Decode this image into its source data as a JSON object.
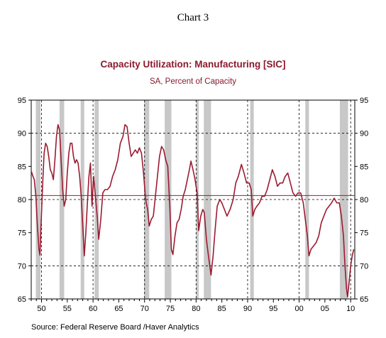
{
  "heading": "Chart 3",
  "source": "Source:  Federal Reserve Board /Haver Analytics",
  "chart_data": {
    "type": "line",
    "title": "Capacity Utilization: Manufacturing [SIC]",
    "subtitle": "SA, Percent of Capacity",
    "xlim": [
      1948,
      2010.8
    ],
    "ylim": [
      65,
      95
    ],
    "y_ticks": [
      95,
      90,
      85,
      80,
      75,
      70,
      65
    ],
    "x_ticks": [
      {
        "value": 1950,
        "label": "50"
      },
      {
        "value": 1955,
        "label": "55"
      },
      {
        "value": 1960,
        "label": "60"
      },
      {
        "value": 1965,
        "label": "65"
      },
      {
        "value": 1970,
        "label": "70"
      },
      {
        "value": 1975,
        "label": "75"
      },
      {
        "value": 1980,
        "label": "80"
      },
      {
        "value": 1985,
        "label": "85"
      },
      {
        "value": 1990,
        "label": "90"
      },
      {
        "value": 1995,
        "label": "95"
      },
      {
        "value": 2000,
        "label": "00"
      },
      {
        "value": 2005,
        "label": "05"
      },
      {
        "value": 2010,
        "label": "10"
      }
    ],
    "vertical_gridlines": [
      1950,
      1960,
      1970,
      1980,
      1990,
      2000,
      2010
    ],
    "horizontal_gridlines": [
      90,
      80,
      70
    ],
    "reference_line": 80.6,
    "recessions": [
      [
        1948.9,
        1949.8
      ],
      [
        1953.5,
        1954.4
      ],
      [
        1957.6,
        1958.3
      ],
      [
        1960.3,
        1961.1
      ],
      [
        1969.9,
        1970.9
      ],
      [
        1973.9,
        1975.2
      ],
      [
        1980.0,
        1980.5
      ],
      [
        1981.5,
        1982.9
      ],
      [
        1990.5,
        1991.2
      ],
      [
        2001.2,
        2001.9
      ],
      [
        2007.9,
        2009.5
      ]
    ],
    "colors": {
      "line": "#9b1b30",
      "recession": "#c8c8c8",
      "reference": "#9b1b30"
    },
    "grid": "dashed, black",
    "series": [
      {
        "values": [
          [
            1948.0,
            84.3
          ],
          [
            1948.3,
            83.6
          ],
          [
            1948.6,
            83.0
          ],
          [
            1948.9,
            80.5
          ],
          [
            1949.2,
            76.0
          ],
          [
            1949.5,
            72.5
          ],
          [
            1949.7,
            71.6
          ],
          [
            1949.9,
            76.0
          ],
          [
            1950.2,
            82.0
          ],
          [
            1950.5,
            87.0
          ],
          [
            1950.8,
            88.5
          ],
          [
            1951.1,
            88.0
          ],
          [
            1951.4,
            86.5
          ],
          [
            1951.7,
            84.5
          ],
          [
            1952.0,
            84.0
          ],
          [
            1952.3,
            83.0
          ],
          [
            1952.6,
            86.0
          ],
          [
            1952.9,
            89.5
          ],
          [
            1953.2,
            91.3
          ],
          [
            1953.5,
            90.5
          ],
          [
            1953.8,
            86.0
          ],
          [
            1954.1,
            81.5
          ],
          [
            1954.4,
            79.0
          ],
          [
            1954.7,
            80.0
          ],
          [
            1955.0,
            84.0
          ],
          [
            1955.3,
            87.0
          ],
          [
            1955.6,
            88.5
          ],
          [
            1955.9,
            88.5
          ],
          [
            1956.2,
            86.5
          ],
          [
            1956.5,
            85.5
          ],
          [
            1956.8,
            86.0
          ],
          [
            1957.1,
            85.5
          ],
          [
            1957.4,
            83.5
          ],
          [
            1957.7,
            80.5
          ],
          [
            1958.0,
            76.0
          ],
          [
            1958.3,
            71.5
          ],
          [
            1958.6,
            75.0
          ],
          [
            1958.9,
            79.5
          ],
          [
            1959.2,
            83.5
          ],
          [
            1959.5,
            85.5
          ],
          [
            1959.8,
            79.0
          ],
          [
            1960.1,
            83.5
          ],
          [
            1960.4,
            81.0
          ],
          [
            1960.8,
            77.5
          ],
          [
            1961.1,
            74.0
          ],
          [
            1961.5,
            77.0
          ],
          [
            1961.9,
            81.0
          ],
          [
            1962.3,
            81.5
          ],
          [
            1962.8,
            81.5
          ],
          [
            1963.3,
            82.0
          ],
          [
            1963.8,
            83.5
          ],
          [
            1964.3,
            84.5
          ],
          [
            1964.8,
            86.0
          ],
          [
            1965.3,
            88.5
          ],
          [
            1965.8,
            89.5
          ],
          [
            1966.2,
            91.3
          ],
          [
            1966.6,
            91.0
          ],
          [
            1967.0,
            88.5
          ],
          [
            1967.4,
            86.5
          ],
          [
            1967.8,
            87.0
          ],
          [
            1968.2,
            87.5
          ],
          [
            1968.6,
            87.0
          ],
          [
            1969.0,
            87.8
          ],
          [
            1969.4,
            87.0
          ],
          [
            1969.8,
            84.0
          ],
          [
            1970.2,
            80.0
          ],
          [
            1970.6,
            78.5
          ],
          [
            1970.9,
            76.0
          ],
          [
            1971.3,
            77.0
          ],
          [
            1971.7,
            77.5
          ],
          [
            1972.1,
            80.5
          ],
          [
            1972.5,
            83.5
          ],
          [
            1972.9,
            86.5
          ],
          [
            1973.3,
            88.0
          ],
          [
            1973.7,
            87.5
          ],
          [
            1974.1,
            86.0
          ],
          [
            1974.5,
            85.0
          ],
          [
            1974.9,
            79.0
          ],
          [
            1975.2,
            72.5
          ],
          [
            1975.5,
            71.7
          ],
          [
            1975.9,
            74.5
          ],
          [
            1976.3,
            76.5
          ],
          [
            1976.7,
            77.0
          ],
          [
            1977.1,
            78.5
          ],
          [
            1977.5,
            80.5
          ],
          [
            1977.9,
            81.5
          ],
          [
            1978.3,
            83.0
          ],
          [
            1978.7,
            84.5
          ],
          [
            1979.0,
            85.8
          ],
          [
            1979.4,
            84.5
          ],
          [
            1979.8,
            83.0
          ],
          [
            1980.2,
            81.0
          ],
          [
            1980.5,
            75.3
          ],
          [
            1980.9,
            77.5
          ],
          [
            1981.3,
            78.5
          ],
          [
            1981.6,
            78.0
          ],
          [
            1982.0,
            74.0
          ],
          [
            1982.4,
            71.5
          ],
          [
            1982.9,
            68.6
          ],
          [
            1983.3,
            71.5
          ],
          [
            1983.7,
            75.5
          ],
          [
            1984.1,
            79.0
          ],
          [
            1984.6,
            80.0
          ],
          [
            1985.0,
            79.5
          ],
          [
            1985.5,
            78.5
          ],
          [
            1986.0,
            77.5
          ],
          [
            1986.6,
            78.5
          ],
          [
            1987.2,
            80.0
          ],
          [
            1987.7,
            82.5
          ],
          [
            1988.2,
            83.5
          ],
          [
            1988.8,
            85.3
          ],
          [
            1989.3,
            84.0
          ],
          [
            1989.8,
            82.5
          ],
          [
            1990.3,
            82.5
          ],
          [
            1990.7,
            81.5
          ],
          [
            1991.0,
            77.5
          ],
          [
            1991.4,
            78.5
          ],
          [
            1991.8,
            79.0
          ],
          [
            1992.3,
            79.5
          ],
          [
            1992.8,
            80.5
          ],
          [
            1993.3,
            80.5
          ],
          [
            1993.8,
            81.5
          ],
          [
            1994.3,
            83.0
          ],
          [
            1994.8,
            84.5
          ],
          [
            1995.3,
            83.5
          ],
          [
            1995.8,
            82.0
          ],
          [
            1996.3,
            82.5
          ],
          [
            1996.8,
            82.5
          ],
          [
            1997.3,
            83.5
          ],
          [
            1997.8,
            84.0
          ],
          [
            1998.3,
            82.5
          ],
          [
            1998.8,
            81.0
          ],
          [
            1999.3,
            80.5
          ],
          [
            1999.8,
            81.0
          ],
          [
            2000.3,
            81.0
          ],
          [
            2000.8,
            79.5
          ],
          [
            2001.2,
            77.0
          ],
          [
            2001.6,
            74.5
          ],
          [
            2001.9,
            71.5
          ],
          [
            2002.3,
            72.5
          ],
          [
            2002.8,
            73.0
          ],
          [
            2003.3,
            73.5
          ],
          [
            2003.8,
            74.5
          ],
          [
            2004.3,
            76.5
          ],
          [
            2004.8,
            77.5
          ],
          [
            2005.3,
            78.5
          ],
          [
            2005.8,
            79.0
          ],
          [
            2006.3,
            79.5
          ],
          [
            2006.8,
            80.2
          ],
          [
            2007.3,
            79.5
          ],
          [
            2007.8,
            79.5
          ],
          [
            2008.2,
            77.5
          ],
          [
            2008.6,
            74.5
          ],
          [
            2008.9,
            70.0
          ],
          [
            2009.2,
            66.5
          ],
          [
            2009.4,
            65.3
          ],
          [
            2009.7,
            67.5
          ],
          [
            2010.0,
            70.0
          ],
          [
            2010.3,
            71.5
          ],
          [
            2010.6,
            72.5
          ]
        ]
      }
    ]
  }
}
